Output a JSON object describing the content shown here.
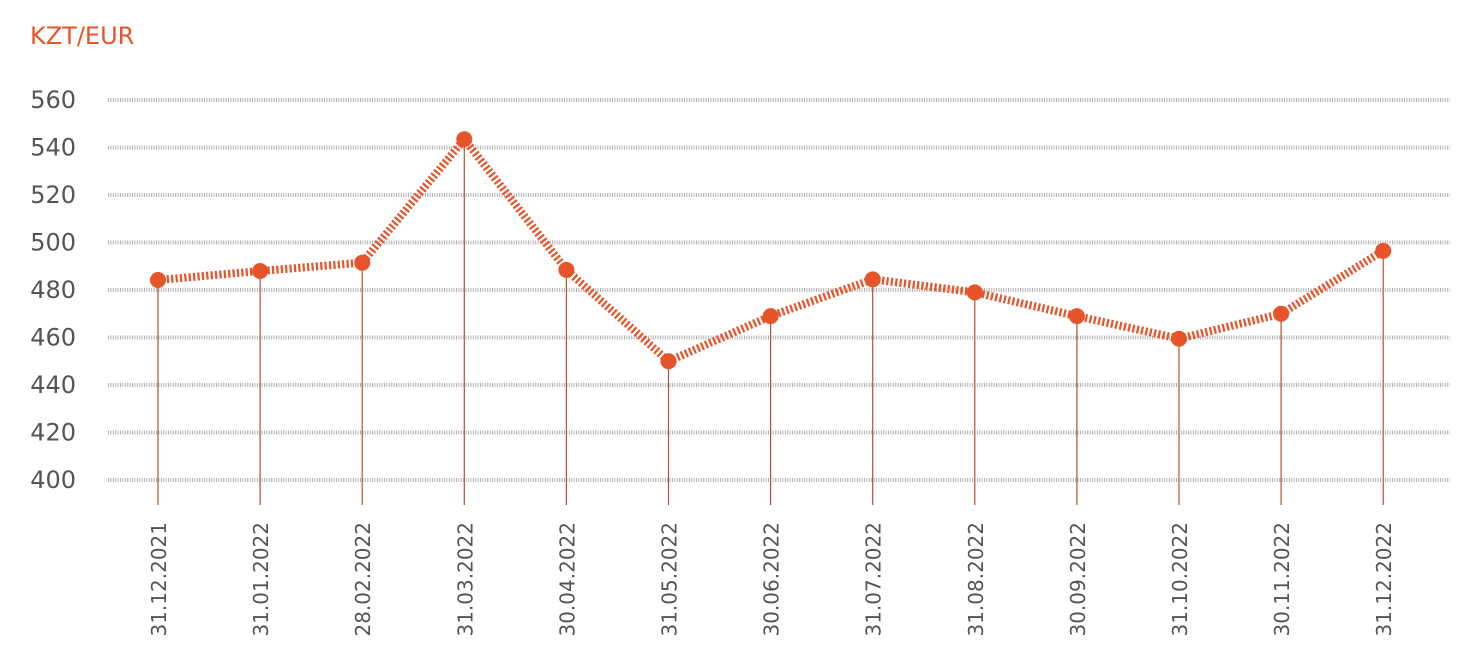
{
  "colors": {
    "accent": "#e8542a",
    "grid": "#b0b0b0",
    "text": "#555555",
    "drop": "#b5532c"
  },
  "chart_data": {
    "type": "line",
    "ylabel": "KZT/EUR",
    "ylim": [
      400,
      560
    ],
    "yticks": [
      400,
      420,
      440,
      460,
      480,
      500,
      520,
      540,
      560
    ],
    "grid": true,
    "categories": [
      "31.12.2021",
      "31.01.2022",
      "28.02.2022",
      "31.03.2022",
      "30.04.2022",
      "31.05.2022",
      "30.06.2022",
      "31.07.2022",
      "31.08.2022",
      "30.09.2022",
      "31.10.2022",
      "30.11.2022",
      "31.12.2022"
    ],
    "series": [
      {
        "values": [
          484.2,
          488.0,
          491.5,
          543.5,
          488.5,
          450.0,
          469.0,
          484.5,
          479.0,
          469.0,
          459.5,
          470.0,
          496.5
        ]
      }
    ]
  }
}
